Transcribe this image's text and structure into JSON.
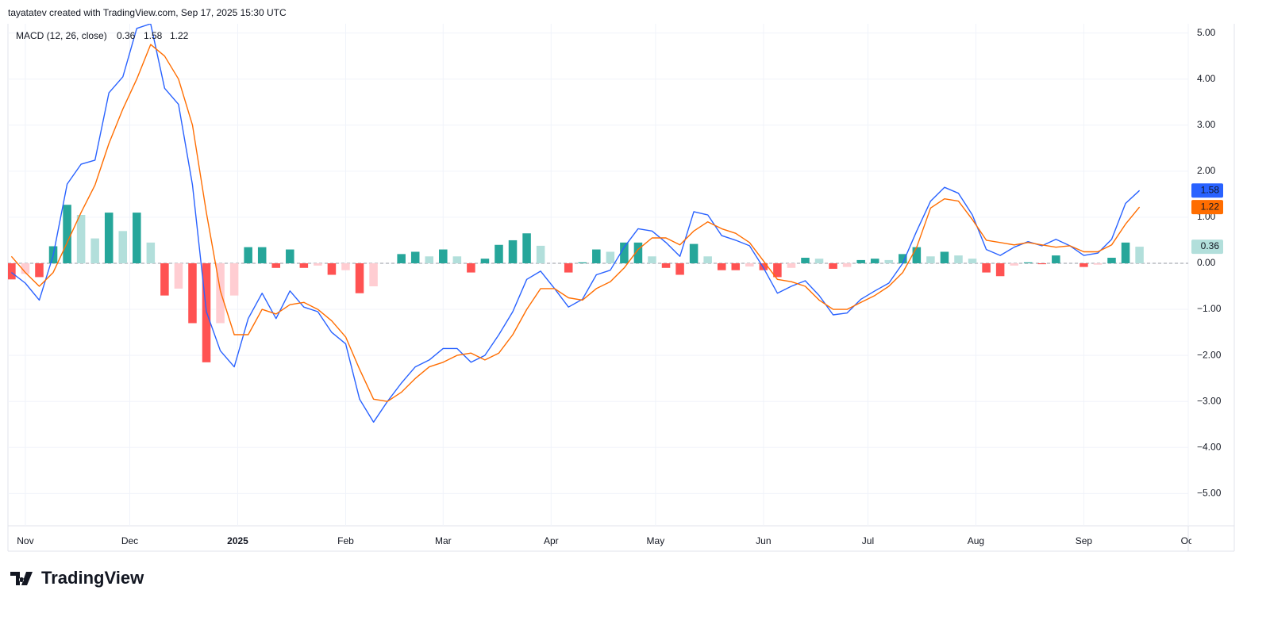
{
  "header": {
    "credit": "tayatatev created with TradingView.com, Sep 17, 2025 15:30 UTC"
  },
  "footer": {
    "logo": "TradingView"
  },
  "chart_data": {
    "type": "macd",
    "title": "MACD (12, 26, close)",
    "x": [
      -4,
      0,
      4,
      8,
      12,
      16,
      20,
      24,
      28,
      32,
      36,
      40,
      44,
      48,
      52,
      56,
      60,
      64,
      68,
      72,
      76,
      80,
      84,
      88,
      92,
      96,
      100,
      104,
      108,
      112,
      116,
      120,
      124,
      128,
      132,
      136,
      140,
      144,
      148,
      152,
      156,
      160,
      164,
      168,
      172,
      176,
      180,
      184,
      188,
      192,
      196,
      200,
      204,
      208,
      212,
      216,
      220,
      224,
      228,
      232,
      236,
      240,
      244,
      248,
      252,
      256,
      260,
      264,
      268,
      272,
      276,
      280,
      284,
      288,
      292,
      296,
      300,
      304,
      308,
      312,
      316,
      320
    ],
    "series": [
      {
        "kind": "histogram",
        "values": [
          -0.35,
          -0.23,
          -0.3,
          0.37,
          1.27,
          1.05,
          0.54,
          1.1,
          0.7,
          1.1,
          0.45,
          -0.7,
          -0.55,
          -1.3,
          -2.15,
          -1.3,
          -0.7,
          0.35,
          0.35,
          -0.1,
          0.3,
          -0.1,
          -0.05,
          -0.25,
          -0.15,
          -0.65,
          -0.5,
          0,
          0.2,
          0.25,
          0.15,
          0.3,
          0.15,
          -0.2,
          0.1,
          0.4,
          0.5,
          0.65,
          0.38,
          0,
          -0.2,
          0.02,
          0.3,
          0.25,
          0.45,
          0.45,
          0.15,
          -0.1,
          -0.25,
          0.42,
          0.15,
          -0.15,
          -0.15,
          -0.07,
          -0.15,
          -0.3,
          -0.1,
          0.12,
          0.1,
          -0.12,
          -0.08,
          0.07,
          0.1,
          0.07,
          0.2,
          0.35,
          0.15,
          0.25,
          0.17,
          0.1,
          -0.2,
          -0.28,
          -0.05,
          0.02,
          -0.02,
          0.17,
          0,
          -0.08,
          -0.03,
          0.12,
          0.45,
          0.36
        ],
        "color": "#b2dfdb",
        "colors": [
          "#26a69a",
          "#b2dfdb",
          "#ffcdd2",
          "#ff5252"
        ]
      },
      {
        "kind": "line",
        "values": [
          -0.2,
          -0.43,
          -0.8,
          0.17,
          1.72,
          2.15,
          2.24,
          3.7,
          4.05,
          5.1,
          5.2,
          3.8,
          3.45,
          1.7,
          -1.05,
          -1.9,
          -2.25,
          -1.2,
          -0.65,
          -1.2,
          -0.6,
          -0.95,
          -1.05,
          -1.5,
          -1.75,
          -2.95,
          -3.45,
          -3.0,
          -2.6,
          -2.25,
          -2.1,
          -1.85,
          -1.85,
          -2.15,
          -2.0,
          -1.55,
          -1.05,
          -0.35,
          -0.17,
          -0.55,
          -0.95,
          -0.78,
          -0.25,
          -0.15,
          0.35,
          0.75,
          0.7,
          0.45,
          0.15,
          1.12,
          1.05,
          0.6,
          0.5,
          0.38,
          -0.1,
          -0.65,
          -0.5,
          -0.38,
          -0.7,
          -1.12,
          -1.08,
          -0.78,
          -0.6,
          -0.43,
          0,
          0.7,
          1.35,
          1.65,
          1.52,
          1.05,
          0.3,
          0.17,
          0.35,
          0.47,
          0.38,
          0.52,
          0.38,
          0.17,
          0.22,
          0.52,
          1.3,
          1.58
        ],
        "color": "#2962ff"
      },
      {
        "kind": "line",
        "values": [
          0.15,
          -0.2,
          -0.5,
          -0.2,
          0.45,
          1.1,
          1.7,
          2.6,
          3.35,
          4.0,
          4.75,
          4.5,
          4.0,
          3.0,
          1.1,
          -0.6,
          -1.55,
          -1.55,
          -1.0,
          -1.1,
          -0.9,
          -0.85,
          -1.0,
          -1.25,
          -1.6,
          -2.3,
          -2.95,
          -3.0,
          -2.8,
          -2.5,
          -2.25,
          -2.15,
          -2.0,
          -1.95,
          -2.1,
          -1.95,
          -1.55,
          -1.0,
          -0.55,
          -0.55,
          -0.75,
          -0.8,
          -0.55,
          -0.4,
          -0.1,
          0.3,
          0.55,
          0.55,
          0.4,
          0.7,
          0.9,
          0.75,
          0.65,
          0.45,
          0.05,
          -0.35,
          -0.4,
          -0.5,
          -0.8,
          -1.0,
          -1.0,
          -0.85,
          -0.7,
          -0.5,
          -0.2,
          0.35,
          1.2,
          1.4,
          1.35,
          0.95,
          0.5,
          0.45,
          0.4,
          0.45,
          0.4,
          0.35,
          0.38,
          0.25,
          0.25,
          0.4,
          0.85,
          1.22
        ],
        "color": "#ff6d00"
      }
    ],
    "xlim": [
      -5,
      334
    ],
    "xticks": [
      {
        "value": 0,
        "label": "Nov"
      },
      {
        "value": 30,
        "label": "Dec"
      },
      {
        "value": 61,
        "label": "2025"
      },
      {
        "value": 92,
        "label": "Feb"
      },
      {
        "value": 120,
        "label": "Mar"
      },
      {
        "value": 151,
        "label": "Apr"
      },
      {
        "value": 181,
        "label": "May"
      },
      {
        "value": 212,
        "label": "Jun"
      },
      {
        "value": 242,
        "label": "Jul"
      },
      {
        "value": 273,
        "label": "Aug"
      },
      {
        "value": 304,
        "label": "Sep"
      },
      {
        "value": 334,
        "label": "Oct"
      }
    ],
    "ylim": [
      -5.7,
      5.2
    ],
    "yticks": [
      {
        "value": 5,
        "label": "5.00"
      },
      {
        "value": 4,
        "label": "4.00"
      },
      {
        "value": 3,
        "label": "3.00"
      },
      {
        "value": 2,
        "label": "2.00"
      },
      {
        "value": 1,
        "label": "1.00"
      },
      {
        "value": 0,
        "label": "0.00"
      },
      {
        "value": -1,
        "label": "−1.00"
      },
      {
        "value": -2,
        "label": "−2.00"
      },
      {
        "value": -3,
        "label": "−3.00"
      },
      {
        "value": -4,
        "label": "−4.00"
      },
      {
        "value": -5,
        "label": "−5.00"
      }
    ],
    "grid": true
  }
}
